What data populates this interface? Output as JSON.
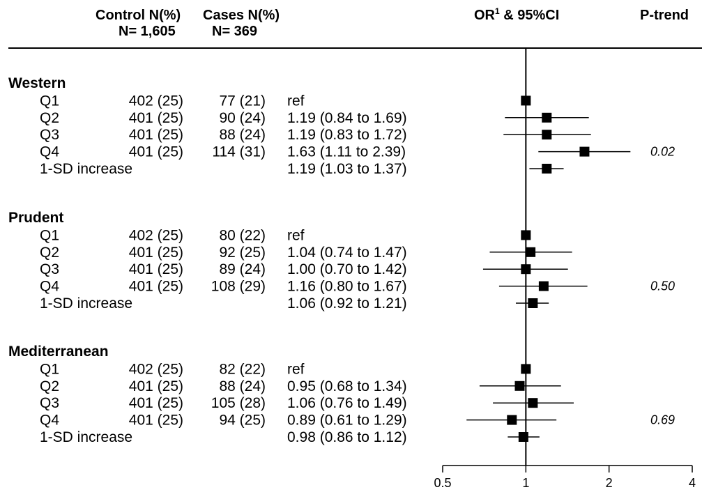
{
  "header": {
    "control_l1": "Control N(%)",
    "control_l2": "N= 1,605",
    "cases_l1": "Cases N(%)",
    "cases_l2": "N= 369",
    "or_main": "OR",
    "or_sup": "1",
    "or_rest": " & 95%CI",
    "ptrend": "P-trend"
  },
  "chart_data": {
    "type": "forest",
    "scale": "log",
    "reference_line": 1,
    "xlim": [
      0.5,
      4
    ],
    "ticks": [
      {
        "value": 0.5,
        "label": "0.5"
      },
      {
        "value": 1,
        "label": "1"
      },
      {
        "value": 2,
        "label": "2"
      },
      {
        "value": 4,
        "label": "4"
      }
    ],
    "groups": [
      {
        "name": "Western",
        "ptrend": "0.02",
        "rows": [
          {
            "label": "Q1",
            "control": "402 (25)",
            "cases": "77 (21)",
            "ci_text": "ref",
            "or": 1.0,
            "lo": null,
            "hi": null
          },
          {
            "label": "Q2",
            "control": "401 (25)",
            "cases": "90 (24)",
            "ci_text": "1.19 (0.84 to 1.69)",
            "or": 1.19,
            "lo": 0.84,
            "hi": 1.69
          },
          {
            "label": "Q3",
            "control": "401 (25)",
            "cases": "88 (24)",
            "ci_text": "1.19 (0.83 to 1.72)",
            "or": 1.19,
            "lo": 0.83,
            "hi": 1.72
          },
          {
            "label": "Q4",
            "control": "401 (25)",
            "cases": "114 (31)",
            "ci_text": "1.63 (1.11 to 2.39)",
            "or": 1.63,
            "lo": 1.11,
            "hi": 2.39
          },
          {
            "label": "1-SD increase",
            "control": "",
            "cases": "",
            "ci_text": "1.19 (1.03 to 1.37)",
            "or": 1.19,
            "lo": 1.03,
            "hi": 1.37
          }
        ]
      },
      {
        "name": "Prudent",
        "ptrend": "0.50",
        "rows": [
          {
            "label": "Q1",
            "control": "402 (25)",
            "cases": "80 (22)",
            "ci_text": "ref",
            "or": 1.0,
            "lo": null,
            "hi": null
          },
          {
            "label": "Q2",
            "control": "401 (25)",
            "cases": "92 (25)",
            "ci_text": "1.04 (0.74 to 1.47)",
            "or": 1.04,
            "lo": 0.74,
            "hi": 1.47
          },
          {
            "label": "Q3",
            "control": "401 (25)",
            "cases": "89 (24)",
            "ci_text": "1.00 (0.70 to 1.42)",
            "or": 1.0,
            "lo": 0.7,
            "hi": 1.42
          },
          {
            "label": "Q4",
            "control": "401 (25)",
            "cases": "108 (29)",
            "ci_text": "1.16 (0.80 to 1.67)",
            "or": 1.16,
            "lo": 0.8,
            "hi": 1.67
          },
          {
            "label": "1-SD increase",
            "control": "",
            "cases": "",
            "ci_text": "1.06 (0.92 to 1.21)",
            "or": 1.06,
            "lo": 0.92,
            "hi": 1.21
          }
        ]
      },
      {
        "name": "Mediterranean",
        "ptrend": "0.69",
        "rows": [
          {
            "label": "Q1",
            "control": "402 (25)",
            "cases": "82 (22)",
            "ci_text": "ref",
            "or": 1.0,
            "lo": null,
            "hi": null
          },
          {
            "label": "Q2",
            "control": "401 (25)",
            "cases": "88 (24)",
            "ci_text": "0.95 (0.68 to 1.34)",
            "or": 0.95,
            "lo": 0.68,
            "hi": 1.34
          },
          {
            "label": "Q3",
            "control": "401 (25)",
            "cases": "105 (28)",
            "ci_text": "1.06 (0.76 to 1.49)",
            "or": 1.06,
            "lo": 0.76,
            "hi": 1.49
          },
          {
            "label": "Q4",
            "control": "401 (25)",
            "cases": "94 (25)",
            "ci_text": "0.89 (0.61 to 1.29)",
            "or": 0.89,
            "lo": 0.61,
            "hi": 1.29
          },
          {
            "label": "1-SD increase",
            "control": "",
            "cases": "",
            "ci_text": "0.98 (0.86 to 1.12)",
            "or": 0.98,
            "lo": 0.86,
            "hi": 1.12
          }
        ]
      }
    ]
  }
}
